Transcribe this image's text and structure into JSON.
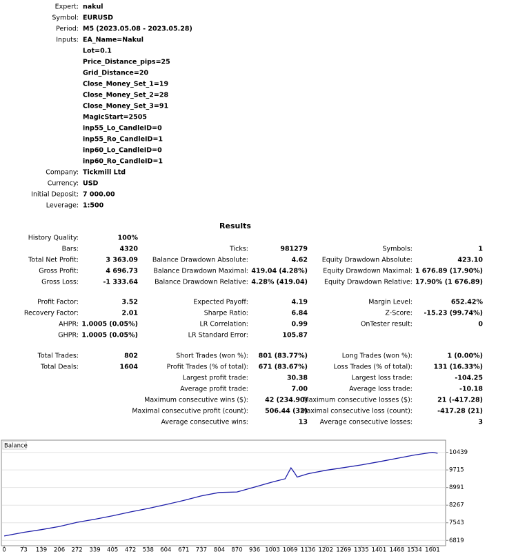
{
  "settings_top": [
    {
      "label": "Expert:",
      "value": "nakul"
    },
    {
      "label": "Symbol:",
      "value": "EURUSD"
    },
    {
      "label": "Period:",
      "value": "M5 (2023.05.08 - 2023.05.28)"
    }
  ],
  "inputs": {
    "label": "Inputs:",
    "values": [
      "EA_Name=Nakul",
      "Lot=0.1",
      "Price_Distance_pips=25",
      "Grid_Distance=20",
      "Close_Money_Set_1=19",
      "Close_Money_Set_2=28",
      "Close_Money_Set_3=91",
      "MagicStart=2505",
      "inp55_Lo_CandleID=0",
      "inp55_Ro_CandleID=1",
      "inp60_Lo_CandleID=0",
      "inp60_Ro_CandleID=1"
    ]
  },
  "settings_bottom": [
    {
      "label": "Company:",
      "value": "Tickmill Ltd"
    },
    {
      "label": "Currency:",
      "value": "USD"
    },
    {
      "label": "Initial Deposit:",
      "value": "7 000.00"
    },
    {
      "label": "Leverage:",
      "value": "1:500"
    }
  ],
  "results": {
    "title": "Results",
    "groups": [
      [
        [
          "History Quality:",
          "100%",
          null,
          null,
          null,
          null
        ],
        [
          "Bars:",
          "4320",
          "Ticks:",
          "981279",
          "Symbols:",
          "1"
        ],
        [
          "Total Net Profit:",
          "3 363.09",
          "Balance Drawdown Absolute:",
          "4.62",
          "Equity Drawdown Absolute:",
          "423.10"
        ],
        [
          "Gross Profit:",
          "4 696.73",
          "Balance Drawdown Maximal:",
          "419.04 (4.28%)",
          "Equity Drawdown Maximal:",
          "1 676.89 (17.90%)"
        ],
        [
          "Gross Loss:",
          "-1 333.64",
          "Balance Drawdown Relative:",
          "4.28% (419.04)",
          "Equity Drawdown Relative:",
          "17.90% (1 676.89)"
        ]
      ],
      [
        [
          "Profit Factor:",
          "3.52",
          "Expected Payoff:",
          "4.19",
          "Margin Level:",
          "652.42%"
        ],
        [
          "Recovery Factor:",
          "2.01",
          "Sharpe Ratio:",
          "6.84",
          "Z-Score:",
          "-15.23 (99.74%)"
        ],
        [
          "AHPR:",
          "1.0005 (0.05%)",
          "LR Correlation:",
          "0.99",
          "OnTester result:",
          "0"
        ],
        [
          "GHPR:",
          "1.0005 (0.05%)",
          "LR Standard Error:",
          "105.87",
          null,
          null
        ]
      ],
      [
        [
          "Total Trades:",
          "802",
          "Short Trades (won %):",
          "801 (83.77%)",
          "Long Trades (won %):",
          "1 (0.00%)"
        ],
        [
          "Total Deals:",
          "1604",
          "Profit Trades (% of total):",
          "671 (83.67%)",
          "Loss Trades (% of total):",
          "131 (16.33%)"
        ],
        [
          null,
          null,
          "Largest profit trade:",
          "30.38",
          "Largest loss trade:",
          "-104.25"
        ],
        [
          null,
          null,
          "Average profit trade:",
          "7.00",
          "Average loss trade:",
          "-10.18"
        ],
        [
          null,
          null,
          "Maximum consecutive wins ($):",
          "42 (234.90)",
          "Maximum consecutive losses ($):",
          "21 (-417.28)"
        ],
        [
          null,
          null,
          "Maximal consecutive profit (count):",
          "506.44 (32)",
          "Maximal consecutive loss (count):",
          "-417.28 (21)"
        ],
        [
          null,
          null,
          "Average consecutive wins:",
          "13",
          "Average consecutive losses:",
          "3"
        ]
      ]
    ]
  },
  "chart_data": {
    "type": "line",
    "title": "Balance",
    "x": [
      0,
      73,
      139,
      206,
      272,
      339,
      405,
      472,
      538,
      604,
      671,
      737,
      804,
      870,
      936,
      1003,
      1050,
      1072,
      1085,
      1095,
      1136,
      1202,
      1269,
      1335,
      1401,
      1468,
      1534,
      1601,
      1620
    ],
    "values": [
      7000,
      7150,
      7260,
      7390,
      7560,
      7690,
      7830,
      7990,
      8130,
      8290,
      8460,
      8650,
      8790,
      8810,
      9010,
      9220,
      9350,
      9800,
      9600,
      9420,
      9560,
      9700,
      9810,
      9920,
      10050,
      10190,
      10330,
      10440,
      10400
    ],
    "color": "#1c1ca8",
    "xlim": [
      -8,
      1650
    ],
    "ylim": [
      6600,
      10910
    ],
    "xticks": [
      0,
      73,
      139,
      206,
      272,
      339,
      405,
      472,
      538,
      604,
      671,
      737,
      804,
      870,
      936,
      1003,
      1069,
      1136,
      1202,
      1269,
      1335,
      1401,
      1468,
      1534,
      1601
    ],
    "yticks": [
      6819,
      7543,
      8267,
      8991,
      9715,
      10439
    ],
    "grid": true
  }
}
